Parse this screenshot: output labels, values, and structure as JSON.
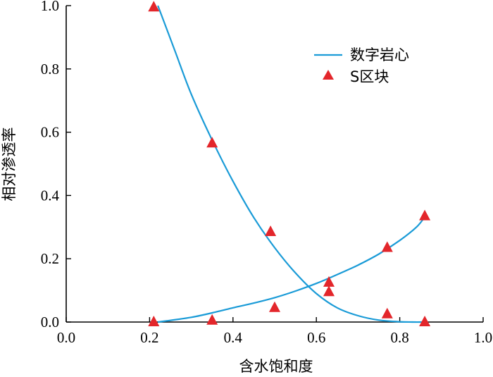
{
  "chart_data": {
    "type": "scatter",
    "title": "",
    "xlabel": "含水饱和度",
    "ylabel": "相对渗透率",
    "xlim": [
      0.0,
      1.0
    ],
    "ylim": [
      0.0,
      1.0
    ],
    "x_ticks": [
      "0.0",
      "0.2",
      "0.4",
      "0.6",
      "0.8",
      "1.0"
    ],
    "y_ticks": [
      "0.0",
      "0.2",
      "0.4",
      "0.6",
      "0.8",
      "1.0"
    ],
    "grid": false,
    "legend_position": "top-right",
    "colors": {
      "line": "#1a9bd7",
      "marker": "#e3262b",
      "axis": "#000000"
    },
    "series": [
      {
        "name": "数字岩心",
        "kind": "line",
        "curves": [
          {
            "id": "oil-kr",
            "x": [
              0.22,
              0.26,
              0.3,
              0.35,
              0.4,
              0.45,
              0.5,
              0.55,
              0.6,
              0.65,
              0.7,
              0.75,
              0.8,
              0.83,
              0.86
            ],
            "y": [
              1.0,
              0.86,
              0.72,
              0.575,
              0.445,
              0.33,
              0.235,
              0.155,
              0.09,
              0.045,
              0.02,
              0.006,
              0.001,
              0.0,
              0.0
            ]
          },
          {
            "id": "water-kr",
            "x": [
              0.22,
              0.3,
              0.36,
              0.4,
              0.45,
              0.5,
              0.55,
              0.6,
              0.65,
              0.7,
              0.75,
              0.8,
              0.84,
              0.86
            ],
            "y": [
              0.0,
              0.015,
              0.032,
              0.045,
              0.06,
              0.077,
              0.098,
              0.122,
              0.15,
              0.18,
              0.215,
              0.258,
              0.3,
              0.332
            ]
          }
        ]
      },
      {
        "name": "S区块",
        "kind": "scatter",
        "points": [
          {
            "x": 0.21,
            "y": 0.995
          },
          {
            "x": 0.35,
            "y": 0.565
          },
          {
            "x": 0.49,
            "y": 0.285
          },
          {
            "x": 0.63,
            "y": 0.095
          },
          {
            "x": 0.77,
            "y": 0.025
          },
          {
            "x": 0.86,
            "y": 0.0
          },
          {
            "x": 0.21,
            "y": 0.0
          },
          {
            "x": 0.35,
            "y": 0.005
          },
          {
            "x": 0.5,
            "y": 0.045
          },
          {
            "x": 0.63,
            "y": 0.125
          },
          {
            "x": 0.77,
            "y": 0.235
          },
          {
            "x": 0.86,
            "y": 0.335
          }
        ]
      }
    ]
  }
}
